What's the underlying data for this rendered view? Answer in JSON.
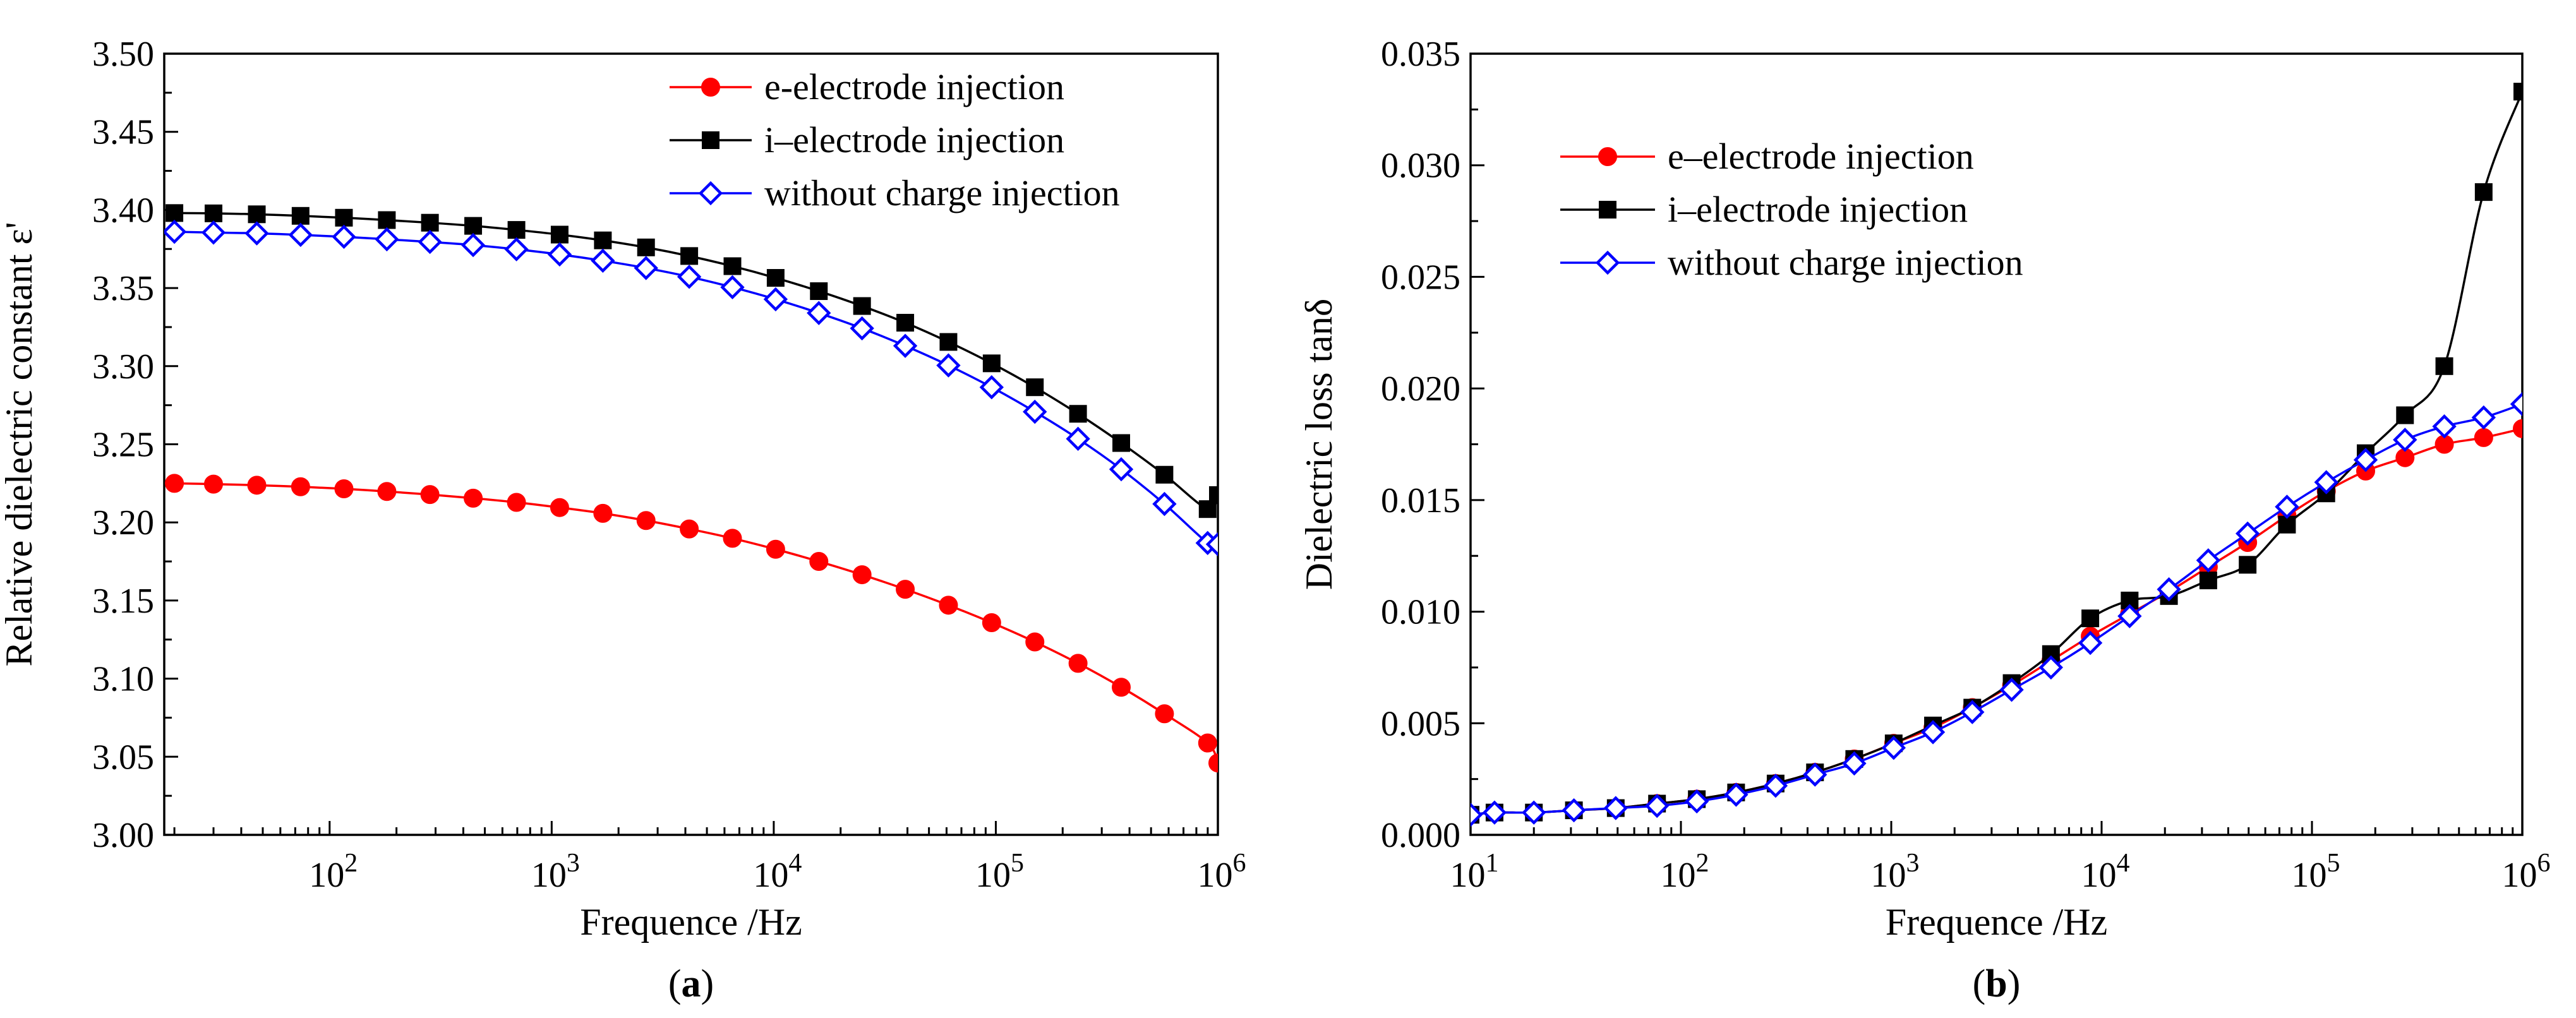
{
  "chart_data": [
    {
      "panel": "(a)",
      "panel_letter": "a",
      "type": "line",
      "xlabel": "Frequence /Hz",
      "ylabel": "Relative dielectric constant ε'",
      "xscale": "log",
      "xlim": [
        18,
        1000000
      ],
      "ylim": [
        3.0,
        3.5
      ],
      "yticks": [
        3.0,
        3.05,
        3.1,
        3.15,
        3.2,
        3.25,
        3.3,
        3.35,
        3.4,
        3.45,
        3.5
      ],
      "ytick_labels": [
        "3.00",
        "3.05",
        "3.10",
        "3.15",
        "3.20",
        "3.25",
        "3.30",
        "3.35",
        "3.40",
        "3.45",
        "3.50"
      ],
      "xticks": [
        {
          "base": "10",
          "exp": "2"
        },
        {
          "base": "10",
          "exp": "3"
        },
        {
          "base": "10",
          "exp": "4"
        },
        {
          "base": "10",
          "exp": "5"
        },
        {
          "base": "10",
          "exp": "6"
        }
      ],
      "legend_position": "top-right",
      "x": [
        20,
        30,
        47,
        74,
        116,
        181,
        283,
        443,
        694,
        1086,
        1700,
        2660,
        4163,
        6516,
        10198,
        15960,
        24980,
        39095,
        61188,
        95765,
        149878,
        234570,
        367120,
        574570,
        899250,
        1000000
      ],
      "series": [
        {
          "name": "e-electrode injection",
          "color": "#ff0000",
          "marker": "filled-circle",
          "values": [
            3.225,
            3.2245,
            3.2238,
            3.2228,
            3.2215,
            3.2198,
            3.2178,
            3.2155,
            3.2128,
            3.2095,
            3.2058,
            3.2012,
            3.1958,
            3.1898,
            3.1828,
            3.175,
            3.1665,
            3.1572,
            3.147,
            3.1358,
            3.1235,
            3.1098,
            3.0945,
            3.0775,
            3.0588,
            3.046
          ]
        },
        {
          "name": "i–electrode injection",
          "color": "#000000",
          "marker": "filled-square",
          "values": [
            3.398,
            3.3978,
            3.3972,
            3.3962,
            3.395,
            3.3935,
            3.3918,
            3.3898,
            3.3872,
            3.3842,
            3.3805,
            3.376,
            3.3705,
            3.364,
            3.3565,
            3.348,
            3.3385,
            3.3278,
            3.3155,
            3.3018,
            3.2865,
            3.2695,
            3.2508,
            3.2305,
            3.2085,
            3.2175
          ]
        },
        {
          "name": "without charge injection",
          "color": "#0000ff",
          "marker": "open-diamond",
          "values": [
            3.386,
            3.3855,
            3.385,
            3.384,
            3.3828,
            3.3812,
            3.3795,
            3.3775,
            3.3748,
            3.3715,
            3.3675,
            3.3628,
            3.3572,
            3.3505,
            3.3428,
            3.334,
            3.3242,
            3.313,
            3.3005,
            3.2865,
            3.2708,
            3.2535,
            3.234,
            3.2118,
            3.1868,
            3.186
          ]
        }
      ]
    },
    {
      "panel": "(b)",
      "panel_letter": "b",
      "type": "line",
      "xlabel": "Frequence /Hz",
      "ylabel": "Dielectric loss tanδ",
      "xscale": "log",
      "xlim": [
        10,
        1000000
      ],
      "ylim": [
        0.0,
        0.035
      ],
      "yticks": [
        0.0,
        0.005,
        0.01,
        0.015,
        0.02,
        0.025,
        0.03,
        0.035
      ],
      "ytick_labels": [
        "0.000",
        "0.005",
        "0.010",
        "0.015",
        "0.020",
        "0.025",
        "0.030",
        "0.035"
      ],
      "xticks": [
        {
          "base": "10",
          "exp": "1"
        },
        {
          "base": "10",
          "exp": "2"
        },
        {
          "base": "10",
          "exp": "3"
        },
        {
          "base": "10",
          "exp": "4"
        },
        {
          "base": "10",
          "exp": "5"
        },
        {
          "base": "10",
          "exp": "6"
        }
      ],
      "legend_position": "top-left",
      "x": [
        10,
        13,
        20,
        31,
        49,
        77,
        119,
        183,
        282,
        434,
        667,
        1027,
        1579,
        2428,
        3735,
        5745,
        8836,
        13590,
        20900,
        32150,
        49450,
        76060,
        117000,
        180000,
        276900,
        425900,
        655200,
        1000000
      ],
      "series": [
        {
          "name": "e–electrode injection",
          "color": "#ff0000",
          "marker": "filled-circle",
          "values": [
            0.0009,
            0.001,
            0.001,
            0.0011,
            0.0012,
            0.0014,
            0.0016,
            0.0019,
            0.0023,
            0.0028,
            0.0034,
            0.0041,
            0.0048,
            0.0057,
            0.0067,
            0.0078,
            0.0089,
            0.0099,
            0.0109,
            0.012,
            0.0131,
            0.0143,
            0.0154,
            0.0163,
            0.0169,
            0.0175,
            0.0178,
            0.0182
          ]
        },
        {
          "name": "i–electrode injection",
          "color": "#000000",
          "marker": "filled-square",
          "values": [
            0.0009,
            0.001,
            0.001,
            0.0011,
            0.0012,
            0.0014,
            0.0016,
            0.0019,
            0.0023,
            0.0028,
            0.0034,
            0.0041,
            0.0049,
            0.0057,
            0.0068,
            0.0081,
            0.0097,
            0.0105,
            0.0107,
            0.0114,
            0.0121,
            0.0139,
            0.0153,
            0.0171,
            0.0188,
            0.021,
            0.0288,
            0.0333
          ]
        },
        {
          "name": "without charge injection",
          "color": "#0000ff",
          "marker": "open-diamond",
          "values": [
            0.0009,
            0.001,
            0.001,
            0.0011,
            0.0012,
            0.0013,
            0.0015,
            0.0018,
            0.0022,
            0.0027,
            0.0032,
            0.0039,
            0.0046,
            0.0055,
            0.0065,
            0.0075,
            0.0086,
            0.0098,
            0.011,
            0.0123,
            0.0135,
            0.0147,
            0.0158,
            0.0168,
            0.0177,
            0.0183,
            0.0187,
            0.0193
          ]
        }
      ]
    }
  ]
}
